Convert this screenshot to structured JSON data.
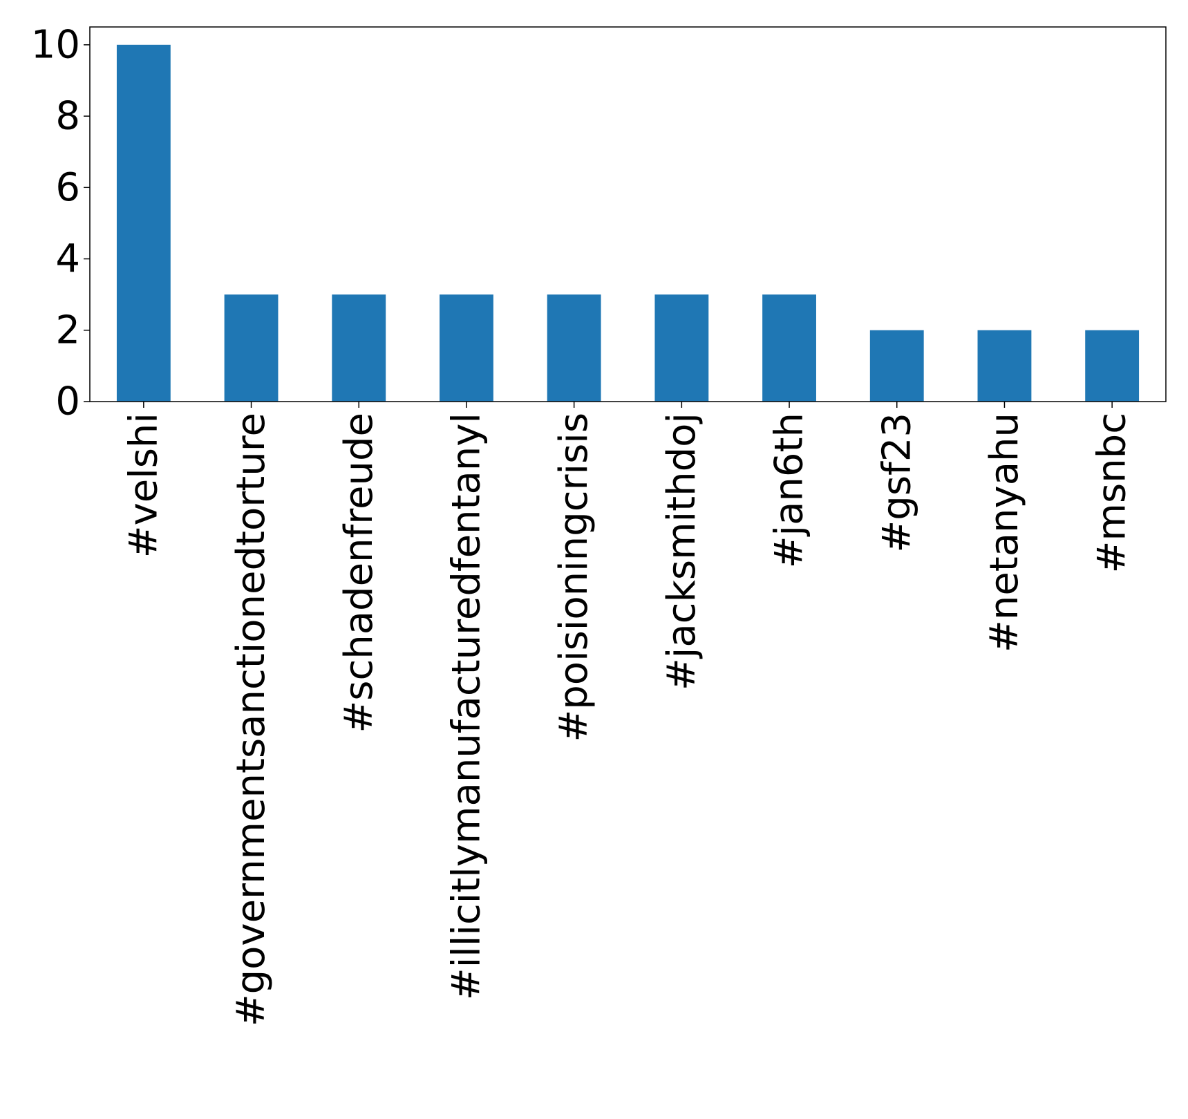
{
  "chart_data": {
    "type": "bar",
    "categories": [
      "#velshi",
      "#governmentsanctionedtorture",
      "#schadenfreude",
      "#illicitlymanufacturedfentanyl",
      "#poisioningcrisis",
      "#jacksmithdoj",
      "#jan6th",
      "#gsf23",
      "#netanyahu",
      "#msnbc"
    ],
    "values": [
      10,
      3,
      3,
      3,
      3,
      3,
      3,
      2,
      2,
      2
    ],
    "title": "",
    "xlabel": "",
    "ylabel": "",
    "ylim": [
      0,
      10.5
    ],
    "yticks": [
      "0",
      "2",
      "4",
      "6",
      "8",
      "10"
    ],
    "grid": false,
    "bar_color": "#1f77b4"
  }
}
